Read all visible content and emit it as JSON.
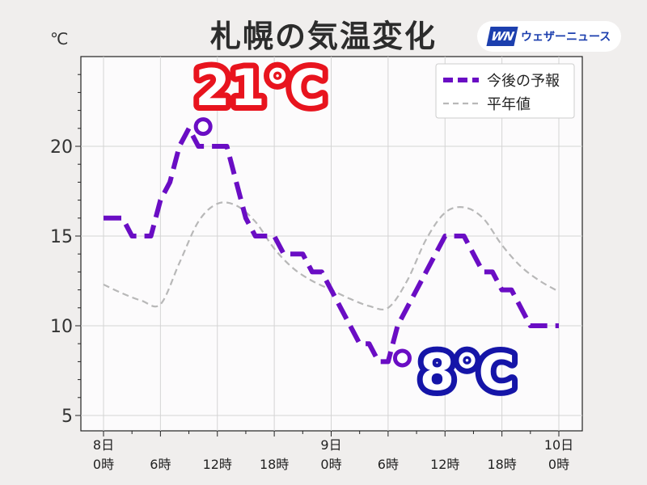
{
  "title": "札幌の気温変化",
  "unit": "℃",
  "logo": {
    "mark": "WN",
    "text": "ウェザーニュース"
  },
  "annotations": {
    "max_label": "21℃",
    "min_label": "8℃",
    "max_color": "#e8141e",
    "min_color": "#1515a8"
  },
  "chart_data": {
    "type": "line",
    "title": "札幌の気温変化",
    "ylabel": "℃",
    "xlim": [
      0,
      48
    ],
    "ylim": [
      4.5,
      25
    ],
    "grid": true,
    "legend_position": "top-right",
    "yticks": [
      5,
      10,
      15,
      20
    ],
    "xticks": [
      {
        "x": 0,
        "label": "8日\n0時"
      },
      {
        "x": 6,
        "label": "6時"
      },
      {
        "x": 12,
        "label": "12時"
      },
      {
        "x": 18,
        "label": "18時"
      },
      {
        "x": 24,
        "label": "9日\n0時"
      },
      {
        "x": 30,
        "label": "6時"
      },
      {
        "x": 36,
        "label": "12時"
      },
      {
        "x": 42,
        "label": "18時"
      },
      {
        "x": 48,
        "label": "10日\n0時"
      }
    ],
    "series": [
      {
        "name": "今後の予報",
        "color": "#6a0dc4",
        "style": "dashed-thick",
        "x": [
          0,
          1,
          2,
          3,
          4,
          5,
          6,
          7,
          8,
          9,
          10,
          11,
          12,
          13,
          14,
          15,
          16,
          17,
          18,
          19,
          20,
          21,
          22,
          23,
          24,
          25,
          26,
          27,
          28,
          29,
          30,
          31,
          32,
          33,
          34,
          35,
          36,
          37,
          38,
          39,
          40,
          41,
          42,
          43,
          44,
          45,
          46,
          47,
          48
        ],
        "y": [
          16,
          16,
          16,
          15,
          15,
          15,
          17,
          18,
          20,
          21,
          20,
          20,
          20,
          20,
          18,
          16,
          15,
          15,
          15,
          14,
          14,
          14,
          13,
          13,
          12,
          11,
          10,
          9,
          9,
          8,
          8,
          10,
          11,
          12,
          13,
          14,
          15,
          15,
          15,
          14,
          13,
          13,
          12,
          12,
          11,
          10,
          10,
          10,
          10
        ]
      },
      {
        "name": "平年値",
        "color": "#b8b8b8",
        "style": "dashed-thin",
        "x": [
          0,
          2,
          4,
          6,
          8,
          10,
          12,
          14,
          16,
          18,
          20,
          22,
          24,
          26,
          28,
          30,
          32,
          34,
          36,
          38,
          40,
          42,
          44,
          46,
          48
        ],
        "y": [
          12.3,
          11.8,
          11.4,
          11.2,
          13.5,
          15.8,
          16.8,
          16.7,
          15.8,
          14.3,
          13.2,
          12.5,
          12.0,
          11.5,
          11.1,
          11.0,
          12.5,
          14.8,
          16.3,
          16.6,
          16.0,
          14.5,
          13.3,
          12.5,
          11.9
        ]
      }
    ],
    "markers": [
      {
        "x": 10.5,
        "y": 21.1,
        "label": "21℃"
      },
      {
        "x": 31.5,
        "y": 8.2,
        "label": "8℃"
      }
    ]
  }
}
